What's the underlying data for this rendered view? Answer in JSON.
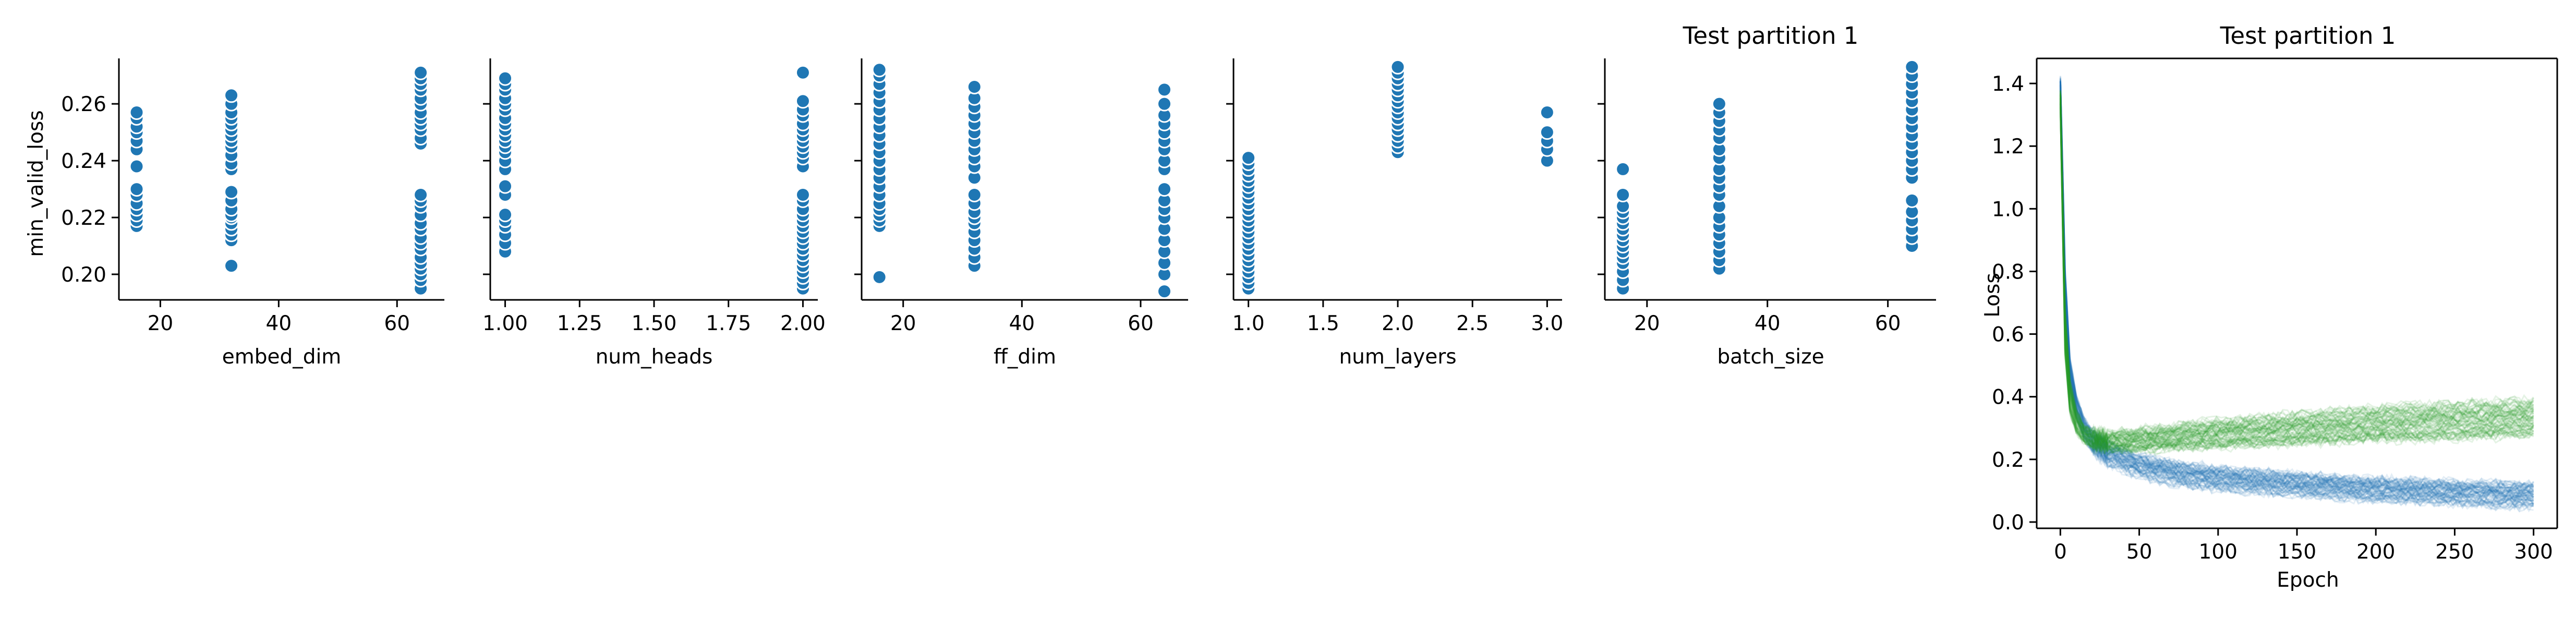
{
  "colors": {
    "blue": "#1f77b4",
    "green": "#2ca02c",
    "axis": "#000000"
  },
  "chart_data": [
    {
      "type": "scatter",
      "title": "",
      "xlabel": "embed_dim",
      "ylabel": "min_valid_loss",
      "xlim": [
        13,
        68
      ],
      "ylim": [
        0.191,
        0.276
      ],
      "xticks": [
        20,
        40,
        60
      ],
      "yticks": [
        0.2,
        0.22,
        0.24,
        0.26
      ],
      "yticklabels": [
        "0.20",
        "0.22",
        "0.24",
        "0.26"
      ],
      "series": [
        {
          "x_values": [
            16,
            32,
            64
          ],
          "y_values": {
            "16": [
              0.217,
              0.219,
              0.221,
              0.223,
              0.225,
              0.228,
              0.23,
              0.238,
              0.244,
              0.247,
              0.25,
              0.252,
              0.255,
              0.257
            ],
            "32": [
              0.203,
              0.212,
              0.214,
              0.216,
              0.218,
              0.22,
              0.221,
              0.223,
              0.226,
              0.229,
              0.237,
              0.239,
              0.242,
              0.245,
              0.247,
              0.249,
              0.251,
              0.253,
              0.255,
              0.257,
              0.26,
              0.263
            ],
            "64": [
              0.195,
              0.198,
              0.2,
              0.202,
              0.204,
              0.206,
              0.209,
              0.211,
              0.213,
              0.216,
              0.218,
              0.221,
              0.224,
              0.226,
              0.228,
              0.246,
              0.248,
              0.251,
              0.253,
              0.255,
              0.257,
              0.26,
              0.262,
              0.265,
              0.267,
              0.269,
              0.271
            ]
          }
        }
      ]
    },
    {
      "type": "scatter",
      "title": "",
      "xlabel": "num_heads",
      "ylabel": "",
      "xlim": [
        0.95,
        2.05
      ],
      "ylim": [
        0.191,
        0.276
      ],
      "xticks": [
        1.0,
        1.25,
        1.5,
        1.75,
        2.0
      ],
      "xticklabels": [
        "1.00",
        "1.25",
        "1.50",
        "1.75",
        "2.00"
      ],
      "series": [
        {
          "x_values": [
            1,
            2
          ],
          "y_values": {
            "1": [
              0.208,
              0.211,
              0.214,
              0.217,
              0.219,
              0.221,
              0.228,
              0.231,
              0.237,
              0.24,
              0.243,
              0.245,
              0.247,
              0.249,
              0.251,
              0.253,
              0.255,
              0.258,
              0.26,
              0.262,
              0.265,
              0.267,
              0.269
            ],
            "2": [
              0.195,
              0.197,
              0.199,
              0.201,
              0.203,
              0.205,
              0.207,
              0.209,
              0.211,
              0.213,
              0.215,
              0.217,
              0.219,
              0.221,
              0.223,
              0.226,
              0.228,
              0.238,
              0.241,
              0.243,
              0.245,
              0.247,
              0.249,
              0.251,
              0.253,
              0.256,
              0.258,
              0.261,
              0.271
            ]
          }
        }
      ]
    },
    {
      "type": "scatter",
      "title": "",
      "xlabel": "ff_dim",
      "ylabel": "",
      "xlim": [
        13,
        68
      ],
      "ylim": [
        0.191,
        0.276
      ],
      "xticks": [
        20,
        40,
        60
      ],
      "series": [
        {
          "x_values": [
            16,
            32,
            64
          ],
          "y_values": {
            "16": [
              0.199,
              0.217,
              0.219,
              0.221,
              0.223,
              0.225,
              0.228,
              0.231,
              0.234,
              0.237,
              0.24,
              0.243,
              0.246,
              0.249,
              0.252,
              0.255,
              0.258,
              0.261,
              0.264,
              0.267,
              0.27,
              0.272
            ],
            "32": [
              0.203,
              0.206,
              0.209,
              0.212,
              0.215,
              0.218,
              0.22,
              0.222,
              0.225,
              0.228,
              0.234,
              0.238,
              0.241,
              0.244,
              0.247,
              0.25,
              0.253,
              0.256,
              0.259,
              0.262,
              0.266
            ],
            "64": [
              0.194,
              0.2,
              0.204,
              0.208,
              0.212,
              0.216,
              0.22,
              0.223,
              0.226,
              0.23,
              0.237,
              0.24,
              0.244,
              0.247,
              0.25,
              0.253,
              0.256,
              0.26,
              0.265
            ]
          }
        }
      ]
    },
    {
      "type": "scatter",
      "title": "",
      "xlabel": "num_layers",
      "ylabel": "",
      "xlim": [
        0.9,
        3.1
      ],
      "ylim": [
        0.191,
        0.276
      ],
      "xticks": [
        1.0,
        1.5,
        2.0,
        2.5,
        3.0
      ],
      "xticklabels": [
        "1.0",
        "1.5",
        "2.0",
        "2.5",
        "3.0"
      ],
      "series": [
        {
          "x_values": [
            1,
            2,
            3
          ],
          "y_values": {
            "1": [
              0.195,
              0.197,
              0.199,
              0.201,
              0.203,
              0.205,
              0.207,
              0.209,
              0.211,
              0.213,
              0.215,
              0.217,
              0.219,
              0.221,
              0.223,
              0.225,
              0.227,
              0.229,
              0.231,
              0.233,
              0.235,
              0.237,
              0.239,
              0.241
            ],
            "2": [
              0.243,
              0.245,
              0.247,
              0.249,
              0.251,
              0.253,
              0.255,
              0.257,
              0.259,
              0.261,
              0.263,
              0.265,
              0.267,
              0.269,
              0.271,
              0.273
            ],
            "3": [
              0.24,
              0.244,
              0.247,
              0.25,
              0.257
            ]
          }
        }
      ]
    },
    {
      "type": "scatter",
      "title": "Test partition 1",
      "xlabel": "batch_size",
      "ylabel": "",
      "xlim": [
        13,
        68
      ],
      "ylim": [
        0.191,
        0.276
      ],
      "xticks": [
        20,
        40,
        60
      ],
      "series": [
        {
          "x_values": [
            16,
            32,
            64
          ],
          "y_values": {
            "16": [
              0.195,
              0.198,
              0.201,
              0.204,
              0.206,
              0.208,
              0.21,
              0.212,
              0.214,
              0.216,
              0.218,
              0.22,
              0.222,
              0.224,
              0.228,
              0.237
            ],
            "32": [
              0.202,
              0.205,
              0.208,
              0.211,
              0.214,
              0.217,
              0.22,
              0.224,
              0.228,
              0.231,
              0.234,
              0.237,
              0.241,
              0.244,
              0.248,
              0.251,
              0.254,
              0.257,
              0.26
            ],
            "64": [
              0.21,
              0.213,
              0.216,
              0.219,
              0.222,
              0.226,
              0.234,
              0.237,
              0.24,
              0.243,
              0.246,
              0.249,
              0.252,
              0.255,
              0.258,
              0.261,
              0.264,
              0.267,
              0.27,
              0.273
            ]
          }
        }
      ]
    },
    {
      "type": "line",
      "title": "Test partition 1",
      "xlabel": "Epoch",
      "ylabel": "Loss",
      "xlim": [
        -15,
        315
      ],
      "ylim": [
        -0.02,
        1.48
      ],
      "xticks": [
        0,
        50,
        100,
        150,
        200,
        250,
        300
      ],
      "yticks": [
        0.0,
        0.2,
        0.4,
        0.6,
        0.8,
        1.0,
        1.2,
        1.4
      ],
      "yticklabels": [
        "0.0",
        "0.2",
        "0.4",
        "0.6",
        "0.8",
        "1.0",
        "1.2",
        "1.4"
      ],
      "series": [
        {
          "color": "blue",
          "runs": "many translucent runs",
          "x": [
            0,
            3,
            6,
            10,
            15,
            20,
            30,
            50,
            75,
            100,
            150,
            200,
            250,
            300
          ],
          "y_center": [
            1.4,
            0.75,
            0.48,
            0.37,
            0.3,
            0.26,
            0.22,
            0.18,
            0.155,
            0.14,
            0.12,
            0.105,
            0.095,
            0.085
          ],
          "y_spread": [
            0.02,
            0.06,
            0.05,
            0.04,
            0.035,
            0.035,
            0.035,
            0.035,
            0.035,
            0.035,
            0.035,
            0.035,
            0.035,
            0.04
          ]
        },
        {
          "color": "green",
          "runs": "many translucent runs",
          "x": [
            0,
            3,
            6,
            10,
            15,
            20,
            30,
            50,
            75,
            100,
            150,
            200,
            250,
            300
          ],
          "y_center": [
            1.35,
            0.6,
            0.4,
            0.32,
            0.28,
            0.265,
            0.255,
            0.26,
            0.27,
            0.28,
            0.295,
            0.31,
            0.32,
            0.33
          ],
          "y_spread": [
            0.03,
            0.08,
            0.06,
            0.04,
            0.03,
            0.03,
            0.03,
            0.035,
            0.04,
            0.045,
            0.05,
            0.055,
            0.06,
            0.06
          ]
        }
      ]
    }
  ]
}
